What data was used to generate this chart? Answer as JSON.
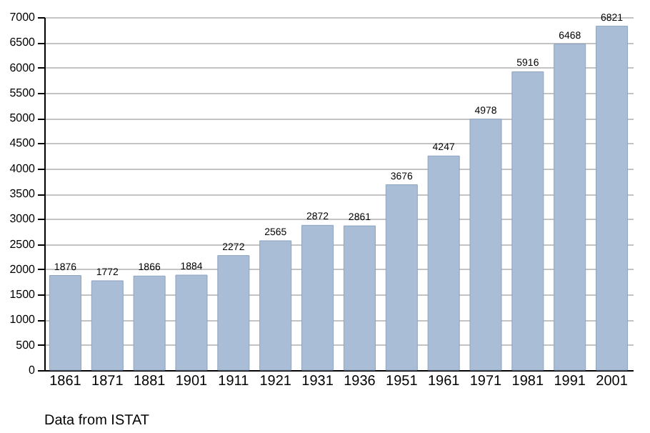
{
  "chart_data": {
    "type": "bar",
    "categories": [
      "1861",
      "1871",
      "1881",
      "1901",
      "1911",
      "1921",
      "1931",
      "1936",
      "1951",
      "1961",
      "1971",
      "1981",
      "1991",
      "2001"
    ],
    "values": [
      1876,
      1772,
      1866,
      1884,
      2272,
      2565,
      2872,
      2861,
      3676,
      4247,
      4978,
      5916,
      6468,
      6821
    ],
    "color": "#a9bdd6",
    "ylim": [
      0,
      7000
    ],
    "yticks": [
      0,
      500,
      1000,
      1500,
      2000,
      2500,
      3000,
      3500,
      4000,
      4500,
      5000,
      5500,
      6000,
      6500,
      7000
    ],
    "grid": "y",
    "data_labels": true,
    "annotations": [
      "Data from ISTAT"
    ]
  }
}
